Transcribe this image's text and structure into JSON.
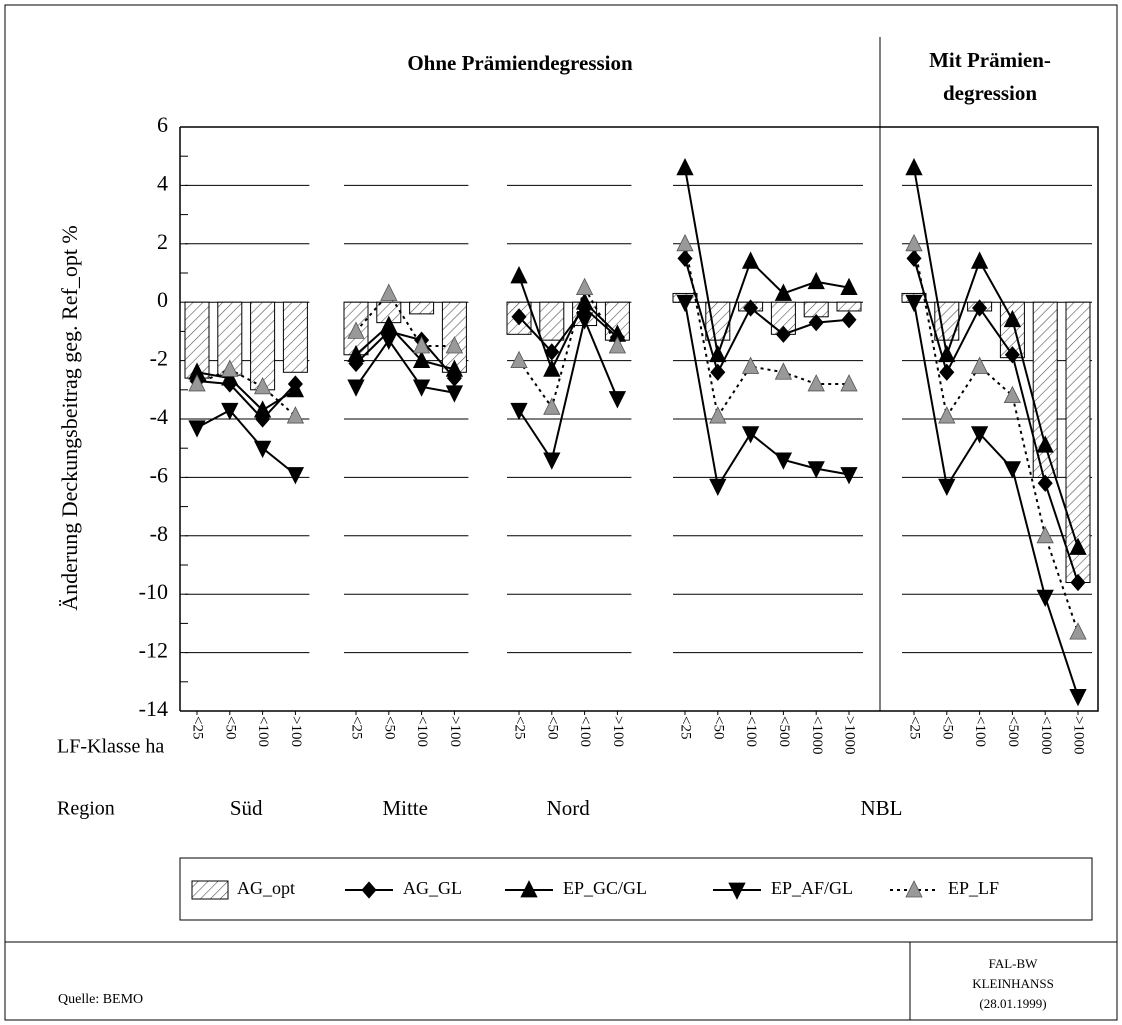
{
  "chart_data": {
    "type": "combo",
    "ylabel": "Änderung Deckungsbeitrag geg. Ref_opt %",
    "category_axis_label": "LF-Klasse ha",
    "group_axis_label": "Region",
    "ylim": [
      -14,
      6
    ],
    "yticks": [
      -14,
      -12,
      -10,
      -8,
      -6,
      -4,
      -2,
      0,
      2,
      4,
      6
    ],
    "grid": true,
    "panels": [
      {
        "title": "Ohne Prämiendegression",
        "groups": [
          {
            "region": "Süd",
            "categories": [
              "<25",
              "<50",
              "<100",
              ">100"
            ]
          },
          {
            "region": "Mitte",
            "categories": [
              "<25",
              "<50",
              "<100",
              ">100"
            ]
          },
          {
            "region": "Nord",
            "categories": [
              "<25",
              "<50",
              "<100",
              ">100"
            ]
          },
          {
            "region": "NBL",
            "categories": [
              "<25",
              "<50",
              "<100",
              "<500",
              "<1000",
              ">1000"
            ]
          }
        ]
      },
      {
        "title_lines": [
          "Mit Prämien-",
          "degression"
        ],
        "groups": [
          {
            "categories": [
              "<25",
              "<50",
              "<100",
              "<500",
              "<1000",
              ">1000"
            ]
          }
        ]
      }
    ],
    "series": [
      {
        "name": "AG_opt",
        "kind": "bar",
        "color": "#000000",
        "values": [
          -2.6,
          -2.5,
          -3.0,
          -2.4,
          -1.8,
          -0.7,
          -0.4,
          -2.4,
          -1.1,
          -1.3,
          -0.8,
          -1.3,
          0.3,
          -1.3,
          -0.3,
          -1.1,
          -0.5,
          -0.3,
          0.3,
          -1.3,
          -0.3,
          -1.9,
          -6.0,
          -9.6
        ]
      },
      {
        "name": "AG_GL",
        "kind": "line",
        "marker": "diamond",
        "color": "#000000",
        "values": [
          -2.7,
          -2.8,
          -4.0,
          -2.8,
          -2.1,
          -1.0,
          -1.3,
          -2.6,
          -0.5,
          -1.7,
          -0.2,
          -1.2,
          1.5,
          -2.4,
          -0.2,
          -1.1,
          -0.7,
          -0.6,
          1.5,
          -2.4,
          -0.2,
          -1.8,
          -6.2,
          -9.6
        ]
      },
      {
        "name": "EP_GC/GL",
        "kind": "line",
        "marker": "triangle-up",
        "color": "#000000",
        "values": [
          -2.4,
          -2.6,
          -3.7,
          -3.0,
          -1.8,
          -0.8,
          -2.0,
          -2.3,
          0.9,
          -2.3,
          0.0,
          -1.1,
          4.6,
          -1.8,
          1.4,
          0.3,
          0.7,
          0.5,
          4.6,
          -1.8,
          1.4,
          -0.6,
          -4.9,
          -8.4
        ]
      },
      {
        "name": "EP_AF/GL",
        "kind": "line",
        "marker": "triangle-down",
        "color": "#000000",
        "values": [
          -4.3,
          -3.7,
          -5.0,
          -5.9,
          -2.9,
          -1.3,
          -2.9,
          -3.1,
          -3.7,
          -5.4,
          -0.6,
          -3.3,
          0.0,
          -6.3,
          -4.5,
          -5.4,
          -5.7,
          -5.9,
          0.0,
          -6.3,
          -4.5,
          -5.7,
          -10.1,
          -13.5
        ]
      },
      {
        "name": "EP_LF",
        "kind": "line",
        "marker": "triangle-up",
        "color": "#999999",
        "dashed": true,
        "values": [
          -2.8,
          -2.3,
          -2.9,
          -3.9,
          -1.0,
          0.3,
          -1.5,
          -1.5,
          -2.0,
          -3.6,
          0.5,
          -1.5,
          2.0,
          -3.9,
          -2.2,
          -2.4,
          -2.8,
          -2.8,
          2.0,
          -3.9,
          -2.2,
          -3.2,
          -8.0,
          -11.3
        ]
      }
    ]
  },
  "footer": {
    "source": "Quelle: BEMO",
    "credit": [
      "FAL-BW",
      "KLEINHANSS",
      "(28.01.1999)"
    ]
  }
}
